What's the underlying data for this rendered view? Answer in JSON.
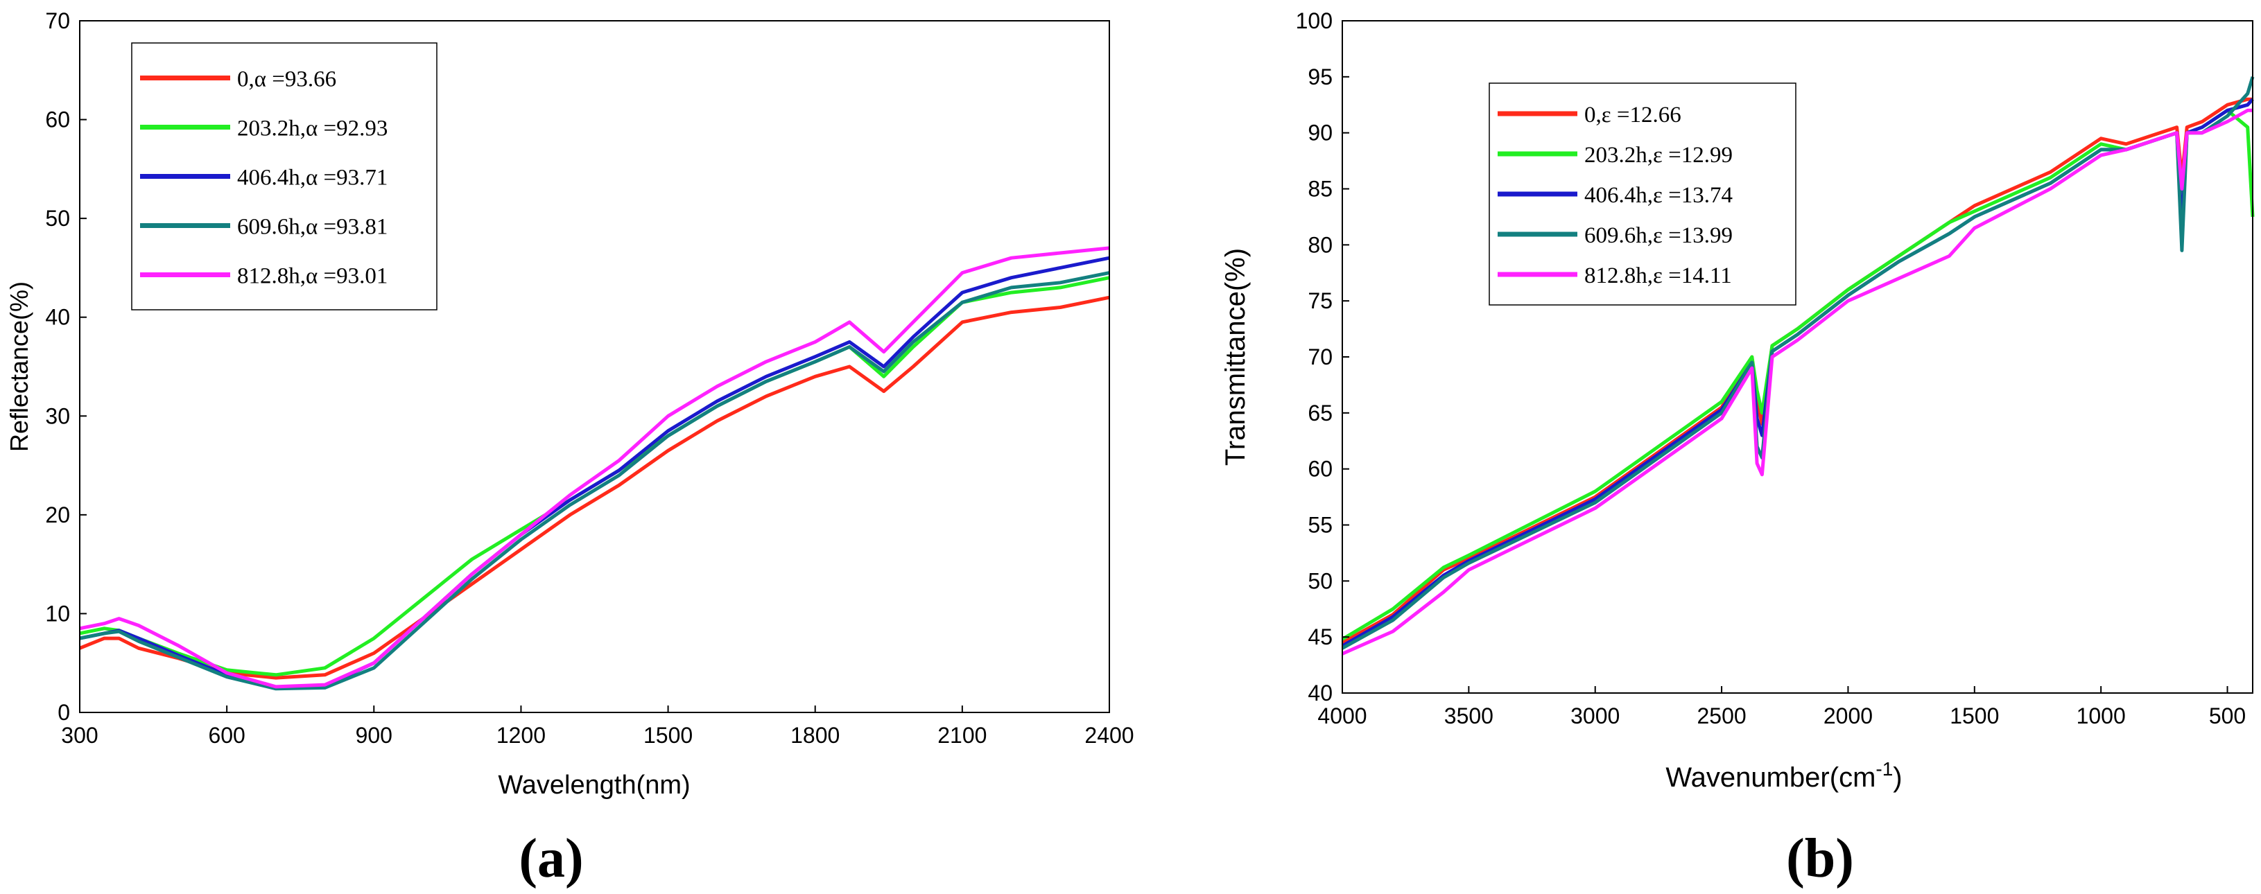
{
  "chart_data": [
    {
      "panel": "(a)",
      "type": "line",
      "xlabel": "Wavelength(nm)",
      "ylabel": "Reflectance(%)",
      "xlim": [
        300,
        2400
      ],
      "ylim": [
        0,
        70
      ],
      "xticks": [
        "300",
        "600",
        "900",
        "1200",
        "1500",
        "1800",
        "2100",
        "2400"
      ],
      "yticks": [
        "0",
        "10",
        "20",
        "30",
        "40",
        "50",
        "60",
        "70"
      ],
      "legend_position": "top-left",
      "series": [
        {
          "name": "0,α =93.66",
          "color": "#ff2a1a",
          "x": [
            300,
            350,
            380,
            420,
            500,
            600,
            700,
            800,
            900,
            1000,
            1100,
            1200,
            1300,
            1400,
            1500,
            1600,
            1700,
            1800,
            1870,
            1940,
            2000,
            2100,
            2200,
            2300,
            2400
          ],
          "y": [
            6.5,
            7.5,
            7.5,
            6.5,
            5.5,
            4.0,
            3.5,
            3.8,
            6.0,
            9.5,
            13.0,
            16.5,
            20.0,
            23.0,
            26.5,
            29.5,
            32.0,
            34.0,
            35.0,
            32.5,
            35.0,
            39.5,
            40.5,
            41.0,
            42.0
          ]
        },
        {
          "name": "203.2h,α =92.93",
          "color": "#22ee22",
          "x": [
            300,
            350,
            380,
            420,
            500,
            600,
            700,
            800,
            900,
            1000,
            1100,
            1200,
            1300,
            1400,
            1500,
            1600,
            1700,
            1800,
            1870,
            1940,
            2000,
            2100,
            2200,
            2300,
            2400
          ],
          "y": [
            8.0,
            8.5,
            8.3,
            7.5,
            6.0,
            4.3,
            3.8,
            4.5,
            7.5,
            11.5,
            15.5,
            18.5,
            21.5,
            24.5,
            28.0,
            31.0,
            33.5,
            35.5,
            37.0,
            34.0,
            37.0,
            41.5,
            42.5,
            43.0,
            44.0
          ]
        },
        {
          "name": "406.4h,α =93.71",
          "color": "#1a1acc",
          "x": [
            300,
            350,
            380,
            420,
            500,
            600,
            700,
            800,
            900,
            1000,
            1100,
            1200,
            1300,
            1400,
            1500,
            1600,
            1700,
            1800,
            1870,
            1940,
            2000,
            2100,
            2200,
            2300,
            2400
          ],
          "y": [
            7.5,
            8.0,
            8.3,
            7.5,
            5.8,
            3.8,
            2.5,
            2.7,
            5.0,
            9.5,
            14.0,
            18.0,
            21.5,
            24.5,
            28.5,
            31.5,
            34.0,
            36.0,
            37.5,
            35.0,
            38.0,
            42.5,
            44.0,
            45.0,
            46.0
          ]
        },
        {
          "name": "609.6h,α =93.81",
          "color": "#138080",
          "x": [
            300,
            350,
            380,
            420,
            500,
            600,
            700,
            800,
            900,
            1000,
            1100,
            1200,
            1300,
            1400,
            1500,
            1600,
            1700,
            1800,
            1870,
            1940,
            2000,
            2100,
            2200,
            2300,
            2400
          ],
          "y": [
            7.5,
            8.0,
            8.2,
            7.2,
            5.6,
            3.6,
            2.4,
            2.5,
            4.5,
            9.0,
            13.5,
            17.5,
            21.0,
            24.0,
            28.0,
            31.0,
            33.5,
            35.5,
            37.0,
            34.5,
            37.5,
            41.5,
            43.0,
            43.5,
            44.5
          ]
        },
        {
          "name": "812.8h,α =93.01",
          "color": "#ff22ff",
          "x": [
            300,
            350,
            380,
            420,
            500,
            600,
            700,
            800,
            900,
            1000,
            1100,
            1200,
            1300,
            1400,
            1500,
            1600,
            1700,
            1800,
            1870,
            1940,
            2000,
            2100,
            2200,
            2300,
            2400
          ],
          "y": [
            8.5,
            9.0,
            9.5,
            8.8,
            6.8,
            4.0,
            2.6,
            2.8,
            5.0,
            9.5,
            14.0,
            18.0,
            22.0,
            25.5,
            30.0,
            33.0,
            35.5,
            37.5,
            39.5,
            36.5,
            39.5,
            44.5,
            46.0,
            46.5,
            47.0
          ]
        }
      ]
    },
    {
      "panel": "(b)",
      "type": "line",
      "xlabel": "Wavenumber(cm",
      "xlabel_sup": "-1",
      "xlabel_end": ")",
      "ylabel": "Transmittance(%)",
      "xlim": [
        4000,
        400
      ],
      "ylim": [
        40,
        100
      ],
      "xticks": [
        "4000",
        "3500",
        "3000",
        "2500",
        "2000",
        "1500",
        "1000",
        "500"
      ],
      "yticks": [
        "40",
        "45",
        "50",
        "55",
        "60",
        "65",
        "70",
        "75",
        "80",
        "85",
        "90",
        "95",
        "100"
      ],
      "legend_position": "top-left",
      "series": [
        {
          "name": "0,ε =12.66",
          "color": "#ff2a1a",
          "x": [
            4000,
            3800,
            3600,
            3500,
            3000,
            2500,
            2380,
            2360,
            2340,
            2300,
            2200,
            2000,
            1800,
            1600,
            1500,
            1200,
            1000,
            900,
            700,
            680,
            660,
            600,
            500,
            420,
            400
          ],
          "y": [
            44.5,
            47.0,
            51.0,
            52.0,
            57.5,
            65.5,
            70.0,
            66.0,
            64.0,
            71.0,
            72.5,
            76.0,
            79.0,
            82.0,
            83.5,
            86.5,
            89.5,
            89.0,
            90.5,
            86.0,
            90.5,
            91.0,
            92.5,
            93.0,
            93.0
          ]
        },
        {
          "name": "203.2h,ε =12.99",
          "color": "#22ee22",
          "x": [
            4000,
            3800,
            3600,
            3500,
            3000,
            2500,
            2380,
            2360,
            2340,
            2300,
            2200,
            2000,
            1800,
            1600,
            1500,
            1200,
            1000,
            900,
            700,
            680,
            660,
            600,
            500,
            420,
            400
          ],
          "y": [
            44.8,
            47.5,
            51.2,
            52.3,
            58.0,
            66.0,
            70.0,
            67.0,
            65.0,
            71.0,
            72.5,
            76.0,
            79.0,
            82.0,
            83.0,
            86.0,
            89.0,
            88.5,
            90.0,
            84.0,
            90.0,
            90.5,
            92.0,
            90.5,
            82.5
          ]
        },
        {
          "name": "406.4h,ε =13.74",
          "color": "#1a1acc",
          "x": [
            4000,
            3800,
            3600,
            3500,
            3000,
            2500,
            2380,
            2360,
            2340,
            2300,
            2200,
            2000,
            1800,
            1600,
            1500,
            1200,
            1000,
            900,
            700,
            680,
            660,
            600,
            500,
            420,
            400
          ],
          "y": [
            44.2,
            46.8,
            50.5,
            51.8,
            57.3,
            65.3,
            69.5,
            64.5,
            63.0,
            70.5,
            72.0,
            75.5,
            78.5,
            81.0,
            82.5,
            85.5,
            88.5,
            88.5,
            90.0,
            81.5,
            90.0,
            90.5,
            92.0,
            92.5,
            93.0
          ]
        },
        {
          "name": "609.6h,ε =13.99",
          "color": "#138080",
          "x": [
            4000,
            3800,
            3600,
            3500,
            3000,
            2500,
            2380,
            2360,
            2340,
            2300,
            2200,
            2000,
            1800,
            1600,
            1500,
            1200,
            1000,
            900,
            700,
            680,
            660,
            600,
            500,
            420,
            400
          ],
          "y": [
            44.0,
            46.5,
            50.3,
            51.6,
            57.0,
            65.0,
            69.5,
            62.0,
            61.0,
            70.5,
            72.0,
            75.5,
            78.5,
            81.0,
            82.5,
            85.5,
            88.5,
            88.5,
            90.0,
            79.5,
            90.0,
            90.0,
            91.5,
            93.5,
            95.0
          ]
        },
        {
          "name": "812.8h,ε =14.11",
          "color": "#ff22ff",
          "x": [
            4000,
            3800,
            3600,
            3500,
            3000,
            2500,
            2380,
            2360,
            2340,
            2300,
            2200,
            2000,
            1800,
            1600,
            1500,
            1200,
            1000,
            900,
            700,
            680,
            660,
            600,
            500,
            420,
            400
          ],
          "y": [
            43.5,
            45.5,
            49.0,
            51.0,
            56.5,
            64.5,
            69.0,
            60.5,
            59.5,
            70.0,
            71.5,
            75.0,
            77.0,
            79.0,
            81.5,
            85.0,
            88.0,
            88.5,
            90.0,
            85.0,
            90.0,
            90.0,
            91.0,
            92.0,
            92.0
          ]
        }
      ]
    }
  ],
  "panel_labels": {
    "a": "(a)",
    "b": "(b)"
  }
}
